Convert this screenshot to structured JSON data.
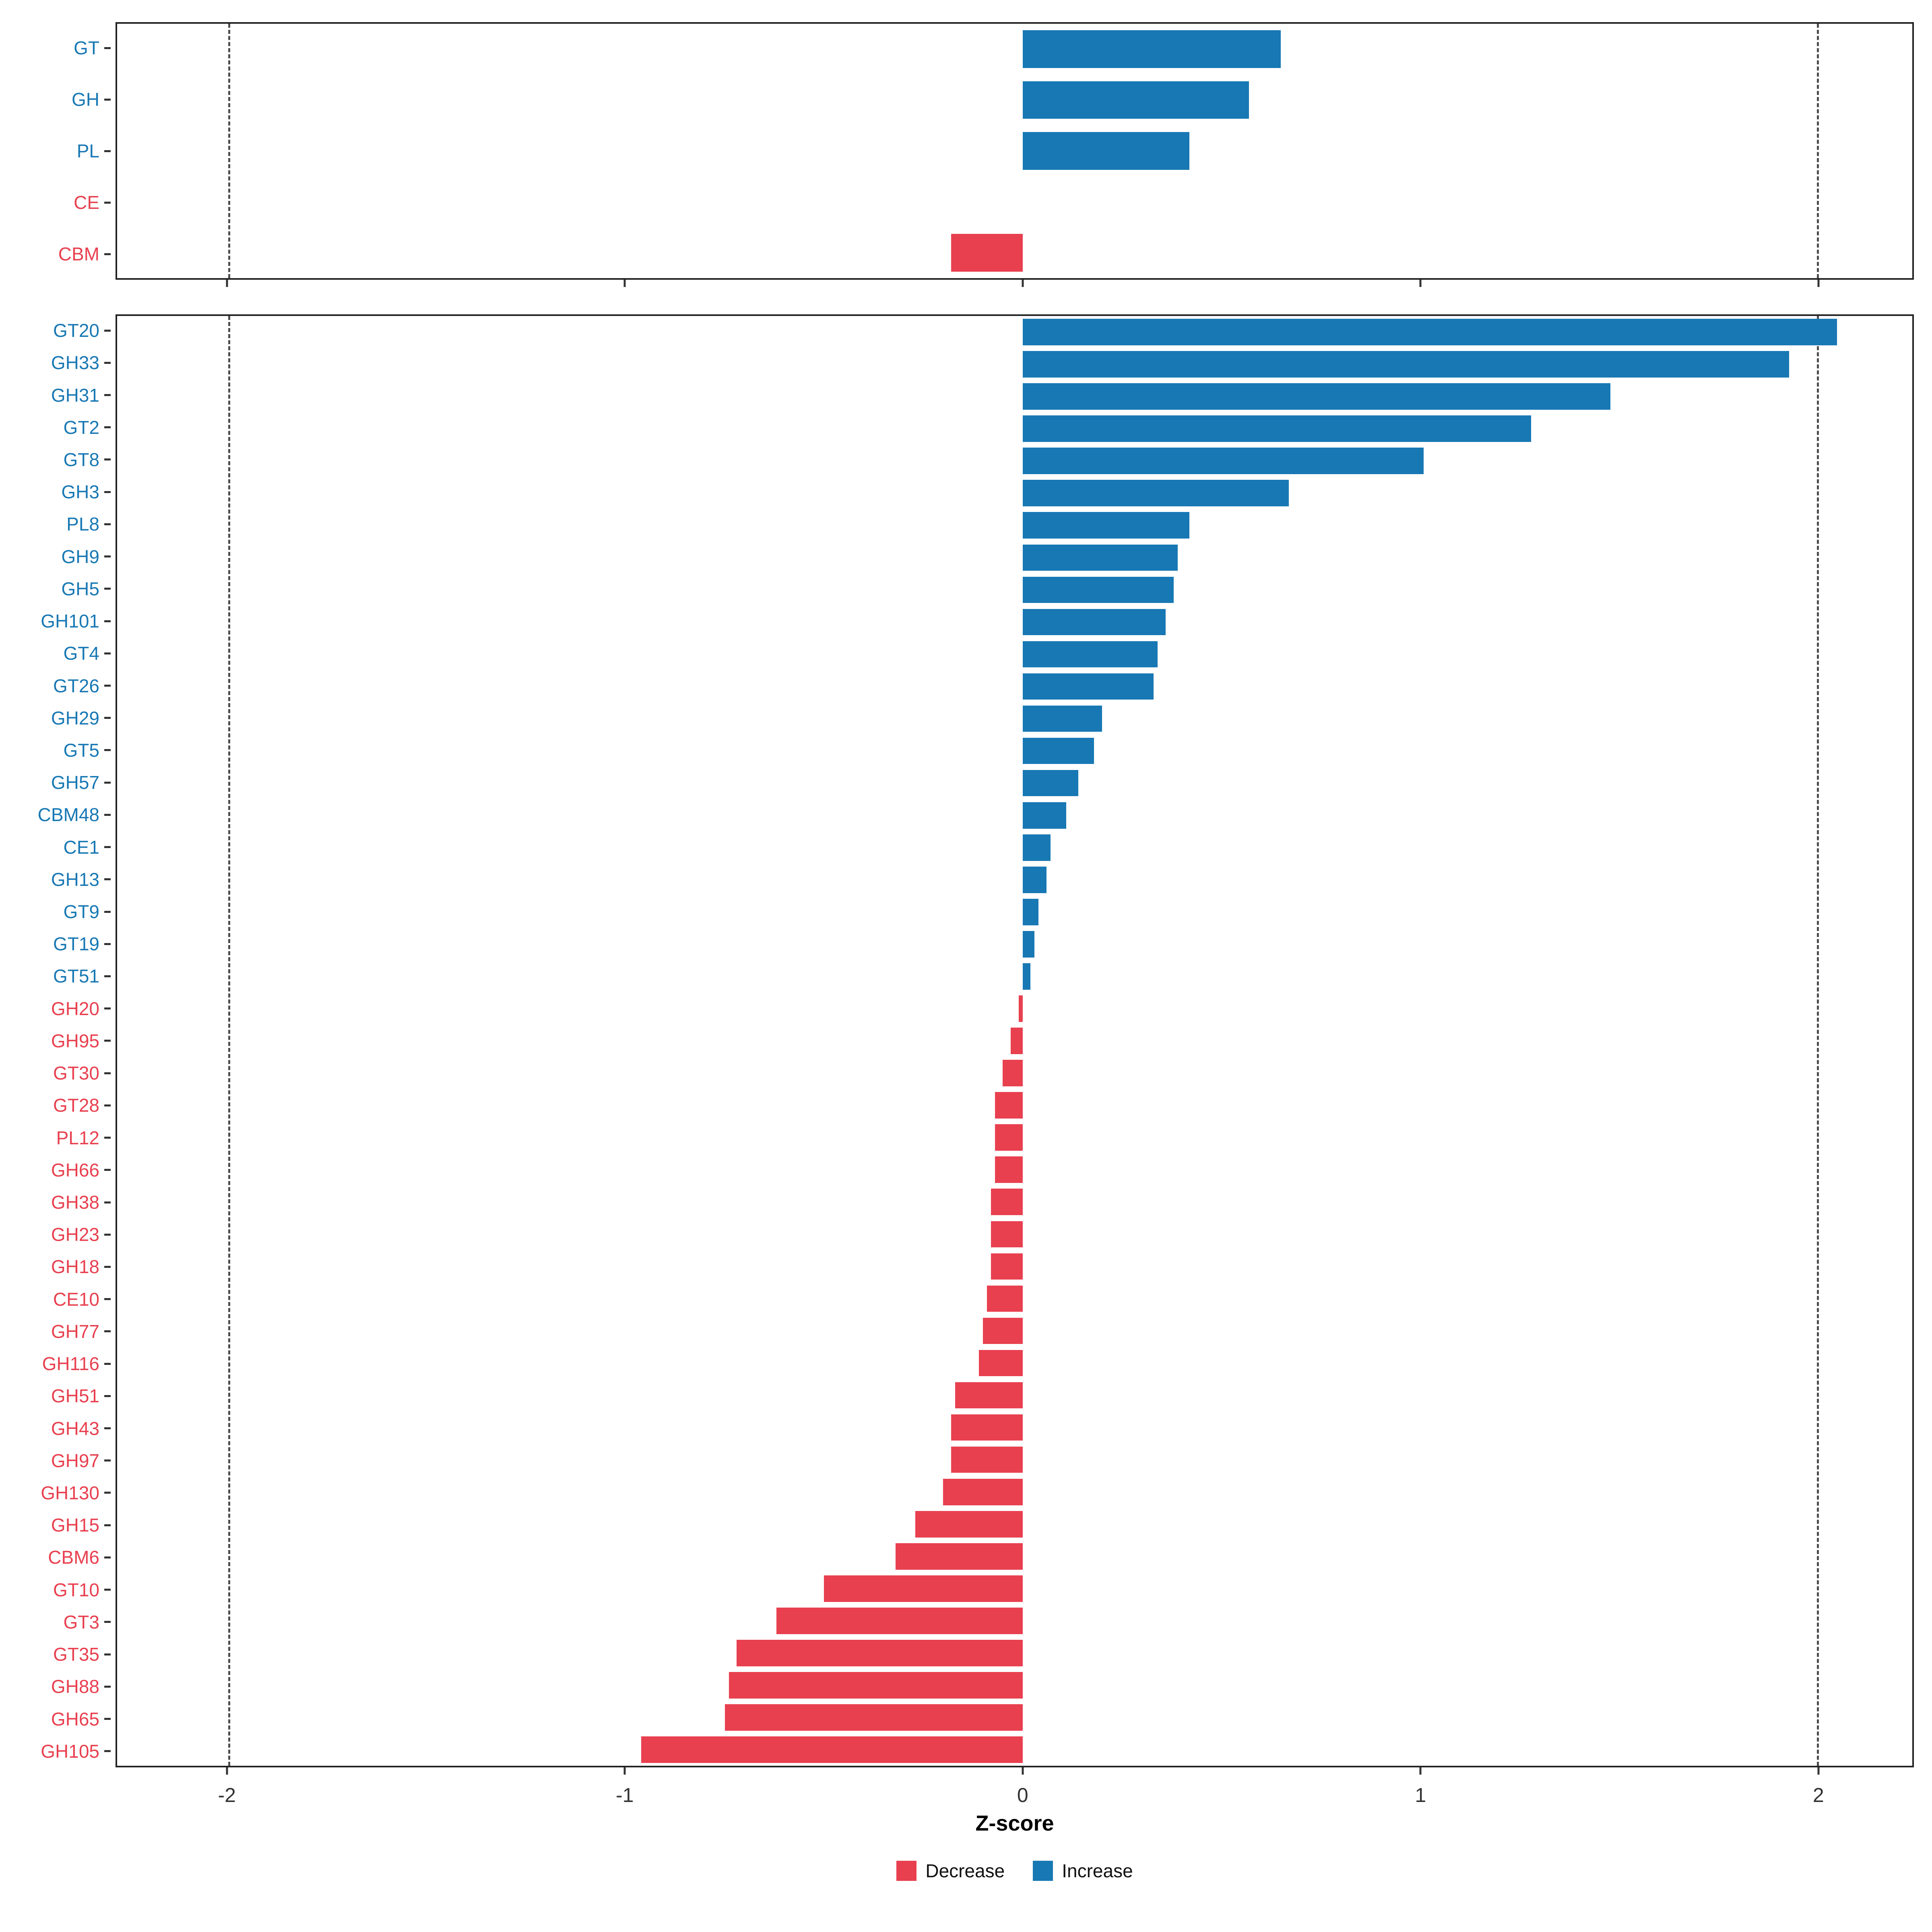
{
  "chart_data": {
    "type": "bar",
    "orientation": "horizontal",
    "xlabel": "Z-score",
    "xlim": [
      -2.28,
      2.24
    ],
    "xticks": [
      -2,
      -1,
      0,
      1,
      2
    ],
    "xtick_labels": [
      "-2",
      "-1",
      "0",
      "1",
      "2"
    ],
    "dashed_guides": [
      -2,
      2
    ],
    "grid": false,
    "legend_position": "bottom",
    "colors": {
      "increase": "#1878b4",
      "decrease": "#e8404f"
    },
    "legend": [
      {
        "label": "Decrease",
        "key": "decrease"
      },
      {
        "label": "Increase",
        "key": "increase"
      }
    ],
    "panels": [
      {
        "name": "family-panel",
        "items": [
          {
            "label": "GT",
            "value": 0.65,
            "dir": "increase"
          },
          {
            "label": "GH",
            "value": 0.57,
            "dir": "increase"
          },
          {
            "label": "PL",
            "value": 0.42,
            "dir": "increase"
          },
          {
            "label": "CE",
            "value": 0.0,
            "dir": "decrease"
          },
          {
            "label": "CBM",
            "value": -0.18,
            "dir": "decrease"
          }
        ]
      },
      {
        "name": "subfamily-panel",
        "items": [
          {
            "label": "GT20",
            "value": 2.05,
            "dir": "increase"
          },
          {
            "label": "GH33",
            "value": 1.93,
            "dir": "increase"
          },
          {
            "label": "GH31",
            "value": 1.48,
            "dir": "increase"
          },
          {
            "label": "GT2",
            "value": 1.28,
            "dir": "increase"
          },
          {
            "label": "GT8",
            "value": 1.01,
            "dir": "increase"
          },
          {
            "label": "GH3",
            "value": 0.67,
            "dir": "increase"
          },
          {
            "label": "PL8",
            "value": 0.42,
            "dir": "increase"
          },
          {
            "label": "GH9",
            "value": 0.39,
            "dir": "increase"
          },
          {
            "label": "GH5",
            "value": 0.38,
            "dir": "increase"
          },
          {
            "label": "GH101",
            "value": 0.36,
            "dir": "increase"
          },
          {
            "label": "GT4",
            "value": 0.34,
            "dir": "increase"
          },
          {
            "label": "GT26",
            "value": 0.33,
            "dir": "increase"
          },
          {
            "label": "GH29",
            "value": 0.2,
            "dir": "increase"
          },
          {
            "label": "GT5",
            "value": 0.18,
            "dir": "increase"
          },
          {
            "label": "GH57",
            "value": 0.14,
            "dir": "increase"
          },
          {
            "label": "CBM48",
            "value": 0.11,
            "dir": "increase"
          },
          {
            "label": "CE1",
            "value": 0.07,
            "dir": "increase"
          },
          {
            "label": "GH13",
            "value": 0.06,
            "dir": "increase"
          },
          {
            "label": "GT9",
            "value": 0.04,
            "dir": "increase"
          },
          {
            "label": "GT19",
            "value": 0.03,
            "dir": "increase"
          },
          {
            "label": "GT51",
            "value": 0.02,
            "dir": "increase"
          },
          {
            "label": "GH20",
            "value": -0.01,
            "dir": "decrease"
          },
          {
            "label": "GH95",
            "value": -0.03,
            "dir": "decrease"
          },
          {
            "label": "GT30",
            "value": -0.05,
            "dir": "decrease"
          },
          {
            "label": "GT28",
            "value": -0.07,
            "dir": "decrease"
          },
          {
            "label": "PL12",
            "value": -0.07,
            "dir": "decrease"
          },
          {
            "label": "GH66",
            "value": -0.07,
            "dir": "decrease"
          },
          {
            "label": "GH38",
            "value": -0.08,
            "dir": "decrease"
          },
          {
            "label": "GH23",
            "value": -0.08,
            "dir": "decrease"
          },
          {
            "label": "GH18",
            "value": -0.08,
            "dir": "decrease"
          },
          {
            "label": "CE10",
            "value": -0.09,
            "dir": "decrease"
          },
          {
            "label": "GH77",
            "value": -0.1,
            "dir": "decrease"
          },
          {
            "label": "GH116",
            "value": -0.11,
            "dir": "decrease"
          },
          {
            "label": "GH51",
            "value": -0.17,
            "dir": "decrease"
          },
          {
            "label": "GH43",
            "value": -0.18,
            "dir": "decrease"
          },
          {
            "label": "GH97",
            "value": -0.18,
            "dir": "decrease"
          },
          {
            "label": "GH130",
            "value": -0.2,
            "dir": "decrease"
          },
          {
            "label": "GH15",
            "value": -0.27,
            "dir": "decrease"
          },
          {
            "label": "CBM6",
            "value": -0.32,
            "dir": "decrease"
          },
          {
            "label": "GT10",
            "value": -0.5,
            "dir": "decrease"
          },
          {
            "label": "GT3",
            "value": -0.62,
            "dir": "decrease"
          },
          {
            "label": "GT35",
            "value": -0.72,
            "dir": "decrease"
          },
          {
            "label": "GH88",
            "value": -0.74,
            "dir": "decrease"
          },
          {
            "label": "GH65",
            "value": -0.75,
            "dir": "decrease"
          },
          {
            "label": "GH105",
            "value": -0.96,
            "dir": "decrease"
          }
        ]
      }
    ]
  }
}
